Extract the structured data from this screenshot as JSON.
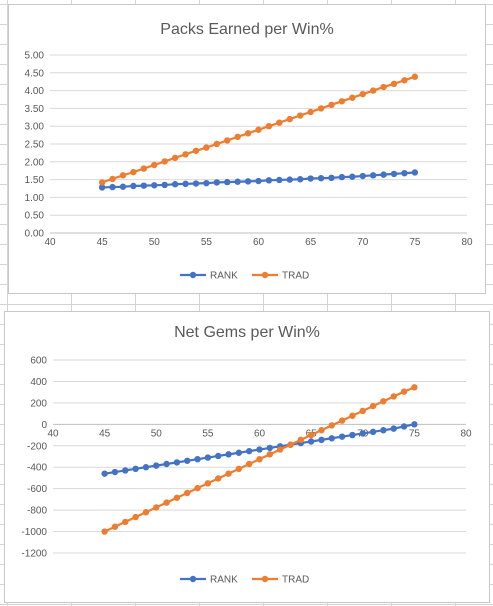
{
  "charts": [
    {
      "title": "Packs Earned per Win%"
    },
    {
      "title": "Net Gems per Win%"
    }
  ],
  "chart_data": [
    {
      "type": "line",
      "title": "Packs Earned per Win%",
      "xlabel": "",
      "ylabel": "",
      "xlim": [
        40,
        80
      ],
      "ylim": [
        0,
        5
      ],
      "x_ticks": [
        "40",
        "45",
        "50",
        "55",
        "60",
        "65",
        "70",
        "75",
        "80"
      ],
      "y_ticks": [
        "0.00",
        "0.50",
        "1.00",
        "1.50",
        "2.00",
        "2.50",
        "3.00",
        "3.50",
        "4.00",
        "4.50",
        "5.00"
      ],
      "grid": true,
      "legend": "bottom",
      "x": [
        45,
        46,
        47,
        48,
        49,
        50,
        51,
        52,
        53,
        54,
        55,
        56,
        57,
        58,
        59,
        60,
        61,
        62,
        63,
        64,
        65,
        66,
        67,
        68,
        69,
        70,
        71,
        72,
        73,
        74,
        75
      ],
      "series": [
        {
          "name": "RANK",
          "color": "#4472C4",
          "values": [
            1.28,
            1.29,
            1.3,
            1.32,
            1.33,
            1.34,
            1.35,
            1.37,
            1.38,
            1.39,
            1.4,
            1.42,
            1.43,
            1.44,
            1.45,
            1.46,
            1.48,
            1.49,
            1.5,
            1.51,
            1.53,
            1.54,
            1.55,
            1.57,
            1.58,
            1.6,
            1.62,
            1.64,
            1.66,
            1.68,
            1.7
          ]
        },
        {
          "name": "TRAD",
          "color": "#ED7D31",
          "values": [
            1.42,
            1.52,
            1.62,
            1.71,
            1.81,
            1.91,
            2.01,
            2.11,
            2.21,
            2.31,
            2.4,
            2.5,
            2.6,
            2.7,
            2.8,
            2.9,
            3.0,
            3.1,
            3.2,
            3.3,
            3.4,
            3.5,
            3.6,
            3.7,
            3.8,
            3.9,
            4.0,
            4.1,
            4.19,
            4.29,
            4.39
          ]
        }
      ]
    },
    {
      "type": "line",
      "title": "Net Gems per Win%",
      "xlabel": "",
      "ylabel": "",
      "xlim": [
        40,
        80
      ],
      "ylim": [
        -1200,
        600
      ],
      "x_ticks": [
        "40",
        "45",
        "50",
        "55",
        "60",
        "65",
        "70",
        "75",
        "80"
      ],
      "y_ticks": [
        "-1200",
        "-1000",
        "-800",
        "-600",
        "-400",
        "-200",
        "0",
        "200",
        "400",
        "600"
      ],
      "grid": true,
      "legend": "bottom",
      "x": [
        45,
        46,
        47,
        48,
        49,
        50,
        51,
        52,
        53,
        54,
        55,
        56,
        57,
        58,
        59,
        60,
        61,
        62,
        63,
        64,
        65,
        66,
        67,
        68,
        69,
        70,
        71,
        72,
        73,
        74,
        75
      ],
      "series": [
        {
          "name": "RANK",
          "color": "#4472C4",
          "values": [
            -460,
            -445,
            -430,
            -415,
            -400,
            -385,
            -370,
            -355,
            -340,
            -325,
            -310,
            -295,
            -280,
            -265,
            -250,
            -235,
            -220,
            -205,
            -190,
            -175,
            -160,
            -145,
            -130,
            -115,
            -100,
            -85,
            -70,
            -55,
            -40,
            -20,
            0
          ]
        },
        {
          "name": "TRAD",
          "color": "#ED7D31",
          "values": [
            -1000,
            -955,
            -910,
            -865,
            -820,
            -775,
            -730,
            -685,
            -640,
            -595,
            -550,
            -505,
            -460,
            -415,
            -370,
            -325,
            -280,
            -235,
            -190,
            -145,
            -100,
            -55,
            -10,
            35,
            80,
            125,
            170,
            215,
            260,
            305,
            345
          ]
        }
      ]
    }
  ]
}
